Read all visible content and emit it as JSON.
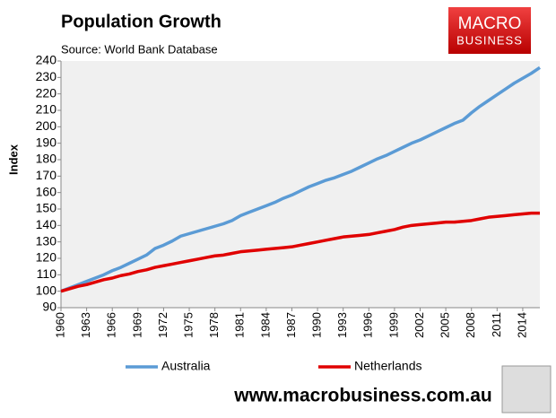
{
  "chart_data": {
    "type": "line",
    "title": "Population Growth",
    "subtitle": "Source: World Bank Database",
    "y_label": "Index",
    "x": [
      1960,
      1961,
      1962,
      1963,
      1964,
      1965,
      1966,
      1967,
      1968,
      1969,
      1970,
      1971,
      1972,
      1973,
      1974,
      1975,
      1976,
      1977,
      1978,
      1979,
      1980,
      1981,
      1982,
      1983,
      1984,
      1985,
      1986,
      1987,
      1988,
      1989,
      1990,
      1991,
      1992,
      1993,
      1994,
      1995,
      1996,
      1997,
      1998,
      1999,
      2000,
      2001,
      2002,
      2003,
      2004,
      2005,
      2006,
      2007,
      2008,
      2009,
      2010,
      2011,
      2012,
      2013,
      2014,
      2015,
      2016
    ],
    "series": [
      {
        "name": "Australia",
        "color": "#5b9bd5",
        "values": [
          100,
          102,
          104,
          106,
          108,
          110,
          112.5,
          114.5,
          117,
          119.5,
          122,
          126,
          128,
          130.5,
          133.5,
          135,
          136.5,
          138,
          139.5,
          141,
          143,
          146,
          148,
          150,
          152,
          154,
          156.5,
          158.5,
          161,
          163.5,
          165.5,
          167.5,
          169,
          171,
          173,
          175.5,
          178,
          180.5,
          182.5,
          185,
          187.5,
          190,
          192,
          194.5,
          197,
          199.5,
          202,
          204,
          208.5,
          212.5,
          216,
          219.5,
          223,
          226.5,
          229.5,
          232.5,
          236
        ]
      },
      {
        "name": "Netherlands",
        "color": "#e00000",
        "values": [
          100,
          101.5,
          103,
          104,
          105.5,
          107,
          108,
          109.5,
          110.5,
          112,
          113,
          114.5,
          115.5,
          116.5,
          117.5,
          118.5,
          119.5,
          120.5,
          121.5,
          122,
          123,
          124,
          124.5,
          125,
          125.5,
          126,
          126.5,
          127,
          128,
          129,
          130,
          131,
          132,
          133,
          133.5,
          134,
          134.5,
          135.5,
          136.5,
          137.5,
          139,
          140,
          140.5,
          141,
          141.5,
          142,
          142,
          142.5,
          143,
          144,
          145,
          145.5,
          146,
          146.5,
          147,
          147.5,
          147.5
        ]
      }
    ],
    "xlim": [
      1960,
      2016
    ],
    "xticks": [
      1960,
      1963,
      1966,
      1969,
      1972,
      1975,
      1978,
      1981,
      1984,
      1987,
      1990,
      1993,
      1996,
      1999,
      2002,
      2005,
      2008,
      2011,
      2014
    ],
    "ylim": [
      90,
      240
    ],
    "yticks": [
      90,
      100,
      110,
      120,
      130,
      140,
      150,
      160,
      170,
      180,
      190,
      200,
      210,
      220,
      230,
      240
    ],
    "grid": false,
    "legend": "bottom"
  },
  "logo": {
    "line1": "MACRO",
    "line2": "BUSINESS"
  },
  "website": "www.macrobusiness.com.au"
}
